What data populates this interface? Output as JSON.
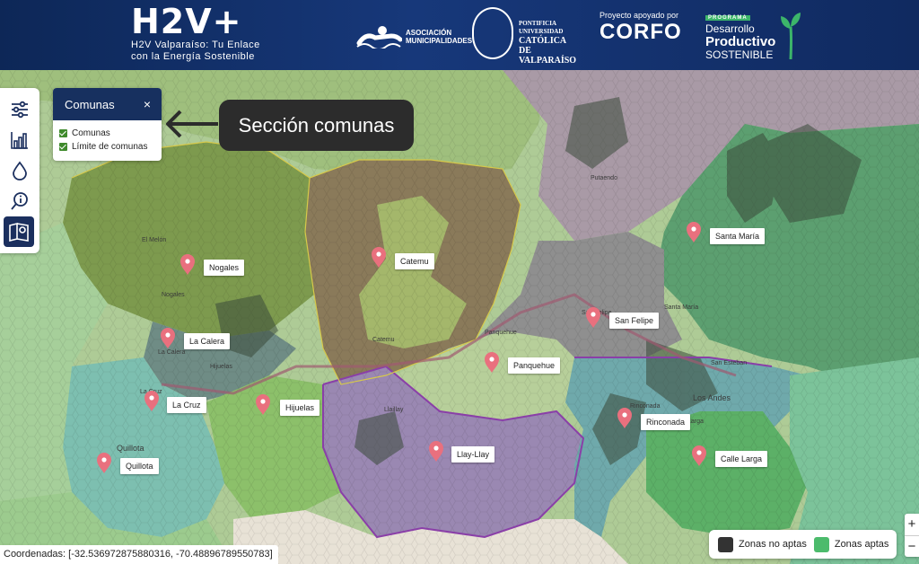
{
  "header": {
    "brand_title": "H2V+",
    "brand_subtitle_1": "H2V Valparaíso: Tu Enlace",
    "brand_subtitle_2": "con la Energía Sostenible",
    "sponsors": {
      "municipalidades": "ASOCIACIÓN MUNICIPALIDADES",
      "puc_1": "PONTIFICIA",
      "puc_2": "UNIVERSIDAD",
      "puc_3": "CATÓLICA DE",
      "puc_4": "VALPARAÍSO",
      "corfo_small": "Proyecto apoyado por",
      "corfo": "CORFO",
      "dps_tag": "PROGRAMA",
      "dps_1": "Desarrollo",
      "dps_2": "Productivo",
      "dps_3": "SOSTENIBLE"
    }
  },
  "toolbar": {
    "tools": [
      {
        "icon": "sliders-icon"
      },
      {
        "icon": "bar-chart-icon"
      },
      {
        "icon": "water-drop-icon"
      },
      {
        "icon": "search-info-icon"
      },
      {
        "icon": "map-book-icon",
        "active": true
      }
    ]
  },
  "panel": {
    "title": "Comunas",
    "close": "×",
    "options": [
      {
        "label": "Comunas",
        "checked": true
      },
      {
        "label": "Límite de comunas",
        "checked": true
      }
    ]
  },
  "callout": {
    "text": "Sección comunas"
  },
  "markers": [
    {
      "label": "Catemu"
    },
    {
      "label": "Santa María"
    },
    {
      "label": "Nogales"
    },
    {
      "label": "San Felipe"
    },
    {
      "label": "La Calera"
    },
    {
      "label": "Panquehue"
    },
    {
      "label": "La Cruz"
    },
    {
      "label": "Hijuelas"
    },
    {
      "label": "Rinconada"
    },
    {
      "label": "Llay-Llay"
    },
    {
      "label": "Calle Larga"
    },
    {
      "label": "Quillota"
    }
  ],
  "map_labels": [
    "El Melón",
    "Nogales",
    "Catemu",
    "Putaendo",
    "Panquehue",
    "San Felipe",
    "Santa María",
    "San Esteban",
    "Los Andes",
    "Larga",
    "Rinconada",
    "Llaillay",
    "La Calera",
    "Hijuelas",
    "Quillota",
    "La Cruz"
  ],
  "coordinates": "Coordenadas: [-32.536972875880316, -70.48896789550783]",
  "legend": {
    "items": [
      {
        "label": "Zonas no aptas",
        "color": "#333333"
      },
      {
        "label": "Zonas aptas",
        "color": "#4cbb6c"
      }
    ]
  },
  "zoom": {
    "in": "+",
    "out": "−"
  }
}
